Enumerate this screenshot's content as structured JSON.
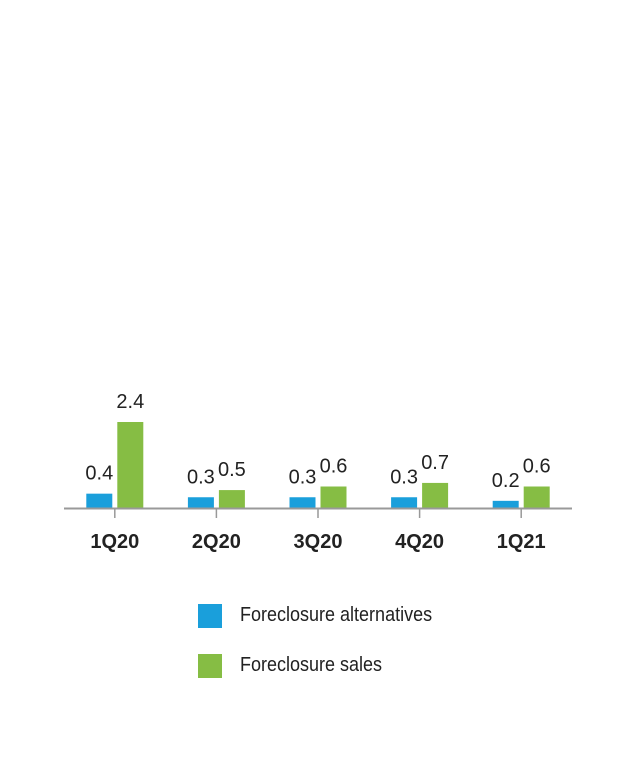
{
  "chart_data": {
    "type": "bar",
    "categories": [
      "1Q20",
      "2Q20",
      "3Q20",
      "4Q20",
      "1Q21"
    ],
    "series": [
      {
        "name": "Foreclosure alternatives",
        "values": [
          0.4,
          0.3,
          0.3,
          0.3,
          0.2
        ],
        "color": "#1a9fdb"
      },
      {
        "name": "Foreclosure sales",
        "values": [
          2.4,
          0.5,
          0.6,
          0.7,
          0.6
        ],
        "color": "#86bd44"
      }
    ],
    "data_labels": [
      "0.4",
      "0.3",
      "0.3",
      "0.3",
      "0.2",
      "2.4",
      "0.5",
      "0.6",
      "0.7",
      "0.6"
    ],
    "ylim": [
      0,
      2.4
    ],
    "grid": false,
    "legend_position": "bottom"
  },
  "colors": {
    "axis": "#999999",
    "text": "#222222"
  }
}
